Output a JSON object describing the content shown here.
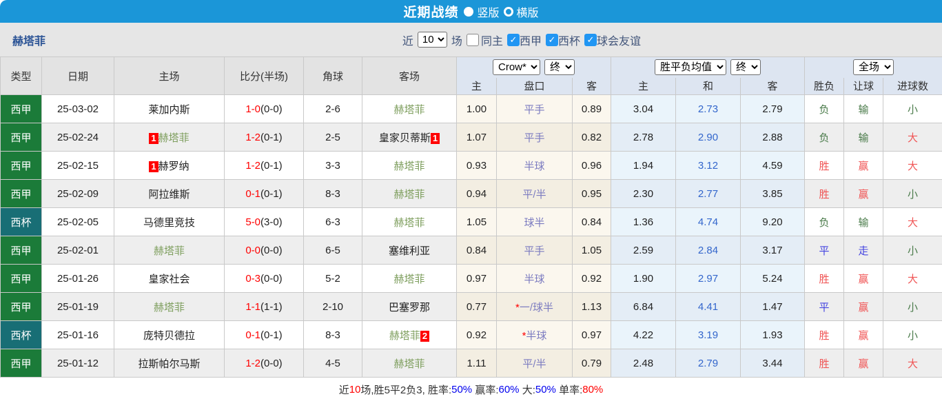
{
  "title_bar": {
    "title": "近期战绩",
    "radio_vertical": "竖版",
    "radio_horizontal": "横版"
  },
  "filter_bar": {
    "team": "赫塔菲",
    "recent_label": "近",
    "recent_value": "10",
    "matches_label": "场",
    "checkboxes": [
      {
        "label": "同主",
        "checked": false
      },
      {
        "label": "西甲",
        "checked": true
      },
      {
        "label": "西杯",
        "checked": true
      },
      {
        "label": "球会友谊",
        "checked": true
      }
    ]
  },
  "table": {
    "columns": [
      "类型",
      "日期",
      "主场",
      "比分(半场)",
      "角球",
      "客场"
    ],
    "dropdowns": {
      "company": "Crow*",
      "company_time": "终",
      "avg": "胜平负均值",
      "avg_time": "终",
      "scope": "全场"
    },
    "sub_headers": [
      "主",
      "盘口",
      "客",
      "主",
      "和",
      "客",
      "胜负",
      "让球",
      "进球数"
    ],
    "rows": [
      {
        "type": "西甲",
        "date": "25-03-02",
        "home": {
          "name": "莱加内斯"
        },
        "score_ft": "1-0",
        "score_ht": "(0-0)",
        "corner": "2-6",
        "away": {
          "name": "赫塔菲"
        },
        "odds": [
          "1.00",
          "平手",
          "0.89"
        ],
        "avg": [
          "3.04",
          "2.73",
          "2.79"
        ],
        "results": [
          "负",
          "输",
          "小"
        ]
      },
      {
        "type": "西甲",
        "date": "25-02-24",
        "home": {
          "name": "赫塔菲",
          "badge": "1",
          "badge_pos": "before"
        },
        "score_ft": "1-2",
        "score_ht": "(0-1)",
        "corner": "2-5",
        "away": {
          "name": "皇家贝蒂斯",
          "badge": "1",
          "badge_pos": "after"
        },
        "odds": [
          "1.07",
          "平手",
          "0.82"
        ],
        "avg": [
          "2.78",
          "2.90",
          "2.88"
        ],
        "results": [
          "负",
          "输",
          "大"
        ]
      },
      {
        "type": "西甲",
        "date": "25-02-15",
        "home": {
          "name": "赫罗纳",
          "badge": "1",
          "badge_pos": "before"
        },
        "score_ft": "1-2",
        "score_ht": "(0-1)",
        "corner": "3-3",
        "away": {
          "name": "赫塔菲"
        },
        "odds": [
          "0.93",
          "半球",
          "0.96"
        ],
        "avg": [
          "1.94",
          "3.12",
          "4.59"
        ],
        "results": [
          "胜",
          "赢",
          "大"
        ]
      },
      {
        "type": "西甲",
        "date": "25-02-09",
        "home": {
          "name": "阿拉维斯"
        },
        "score_ft": "0-1",
        "score_ht": "(0-1)",
        "corner": "8-3",
        "away": {
          "name": "赫塔菲"
        },
        "odds": [
          "0.94",
          "平/半",
          "0.95"
        ],
        "avg": [
          "2.30",
          "2.77",
          "3.85"
        ],
        "results": [
          "胜",
          "赢",
          "小"
        ]
      },
      {
        "type": "西杯",
        "date": "25-02-05",
        "home": {
          "name": "马德里竞技"
        },
        "score_ft": "5-0",
        "score_ht": "(3-0)",
        "corner": "6-3",
        "away": {
          "name": "赫塔菲"
        },
        "odds": [
          "1.05",
          "球半",
          "0.84"
        ],
        "avg": [
          "1.36",
          "4.74",
          "9.20"
        ],
        "results": [
          "负",
          "输",
          "大"
        ]
      },
      {
        "type": "西甲",
        "date": "25-02-01",
        "home": {
          "name": "赫塔菲"
        },
        "score_ft": "0-0",
        "score_ht": "(0-0)",
        "corner": "6-5",
        "away": {
          "name": "塞维利亚"
        },
        "odds": [
          "0.84",
          "平手",
          "1.05"
        ],
        "avg": [
          "2.59",
          "2.84",
          "3.17"
        ],
        "results": [
          "平",
          "走",
          "小"
        ]
      },
      {
        "type": "西甲",
        "date": "25-01-26",
        "home": {
          "name": "皇家社会"
        },
        "score_ft": "0-3",
        "score_ht": "(0-0)",
        "corner": "5-2",
        "away": {
          "name": "赫塔菲"
        },
        "odds": [
          "0.97",
          "半球",
          "0.92"
        ],
        "avg": [
          "1.90",
          "2.97",
          "5.24"
        ],
        "results": [
          "胜",
          "赢",
          "大"
        ]
      },
      {
        "type": "西甲",
        "date": "25-01-19",
        "home": {
          "name": "赫塔菲"
        },
        "score_ft": "1-1",
        "score_ht": "(1-1)",
        "corner": "2-10",
        "away": {
          "name": "巴塞罗那"
        },
        "odds": [
          "0.77",
          "*一/球半",
          "1.13"
        ],
        "avg": [
          "6.84",
          "4.41",
          "1.47"
        ],
        "results": [
          "平",
          "赢",
          "小"
        ]
      },
      {
        "type": "西杯",
        "date": "25-01-16",
        "home": {
          "name": "庞特贝德拉"
        },
        "score_ft": "0-1",
        "score_ht": "(0-1)",
        "corner": "8-3",
        "away": {
          "name": "赫塔菲",
          "badge": "2",
          "badge_pos": "after"
        },
        "odds": [
          "0.92",
          "*半球",
          "0.97"
        ],
        "avg": [
          "4.22",
          "3.19",
          "1.93"
        ],
        "results": [
          "胜",
          "赢",
          "小"
        ]
      },
      {
        "type": "西甲",
        "date": "25-01-12",
        "home": {
          "name": "拉斯帕尔马斯"
        },
        "score_ft": "1-2",
        "score_ht": "(0-0)",
        "corner": "4-5",
        "away": {
          "name": "赫塔菲"
        },
        "odds": [
          "1.11",
          "平/半",
          "0.79"
        ],
        "avg": [
          "2.48",
          "2.79",
          "3.44"
        ],
        "results": [
          "胜",
          "赢",
          "大"
        ]
      }
    ]
  },
  "summary": {
    "segments": [
      {
        "text": "近",
        "color": "#333333"
      },
      {
        "text": "10",
        "color": "#ff0000"
      },
      {
        "text": "场,胜5平2负3, 胜率:",
        "color": "#333333"
      },
      {
        "text": "50%",
        "color": "#0000ee"
      },
      {
        "text": " 赢率:",
        "color": "#333333"
      },
      {
        "text": "60%",
        "color": "#0000ee"
      },
      {
        "text": " 大:",
        "color": "#333333"
      },
      {
        "text": "50%",
        "color": "#0000ee"
      },
      {
        "text": " 单率:",
        "color": "#333333"
      },
      {
        "text": "80%",
        "color": "#ff0000"
      }
    ]
  },
  "colors": {
    "accent_blue": "#1b96d8",
    "league_green": "#1b7b39",
    "cup_teal": "#186e75",
    "win_red": "#f05555",
    "lose_green": "#4a7b4a",
    "draw_blue": "#4444e0",
    "handicap_text": "#7b7bc0",
    "avg_mid_blue": "#3366cc",
    "score_red": "#ff0000",
    "badge_red": "#ff0000",
    "self_team_green": "#7f9f5f",
    "checkbox_blue": "#2196f3"
  }
}
